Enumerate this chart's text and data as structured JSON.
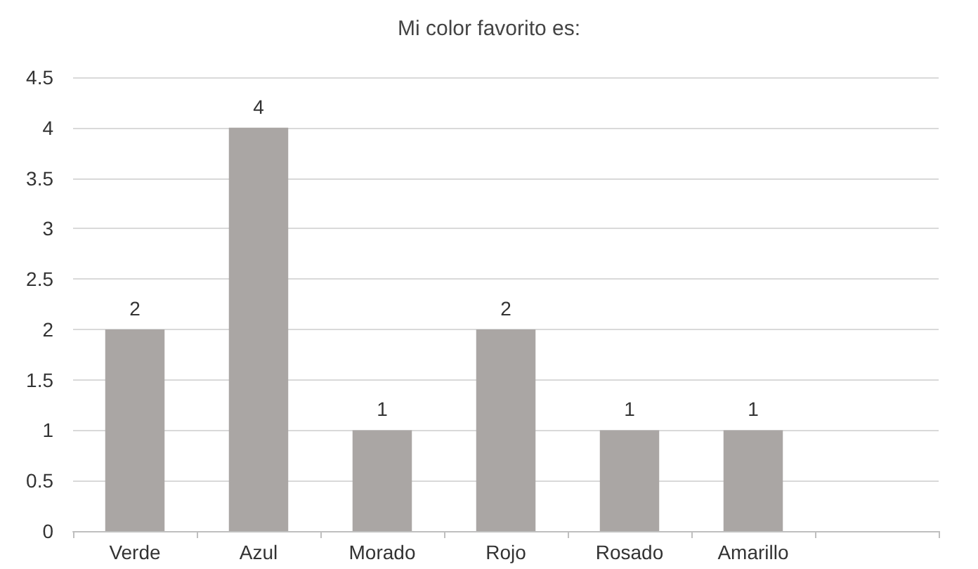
{
  "chart_data": {
    "type": "bar",
    "title": "Mi color favorito es:",
    "categories": [
      "Verde",
      "Azul",
      "Morado",
      "Rojo",
      "Rosado",
      "Amarillo",
      null
    ],
    "values": [
      2,
      4,
      1,
      2,
      1,
      1,
      null
    ],
    "color": "#aaa6a4",
    "ylim": [
      0,
      4.5
    ],
    "yticks": [
      0,
      0.5,
      1,
      1.5,
      2,
      2.5,
      3,
      3.5,
      4,
      4.5
    ],
    "grid": "y",
    "data_labels": true
  }
}
